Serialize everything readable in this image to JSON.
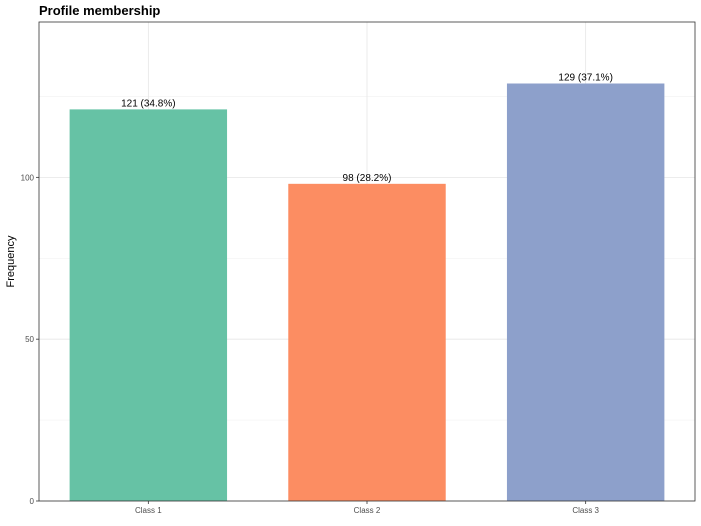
{
  "chart_data": {
    "type": "bar",
    "title": "Profile membership",
    "xlabel": "",
    "ylabel": "Frequency",
    "categories": [
      "Class 1",
      "Class 2",
      "Class 3"
    ],
    "values": [
      121,
      98,
      129
    ],
    "data_labels": [
      "121 (34.8%)",
      "98 (28.2%)",
      "129 (37.1%)"
    ],
    "colors": [
      "#66c2a5",
      "#fc8d62",
      "#8da0cb"
    ],
    "ylim": [
      0,
      148
    ],
    "yticks": [
      0,
      50,
      100
    ],
    "grid": true,
    "legend": "none"
  }
}
